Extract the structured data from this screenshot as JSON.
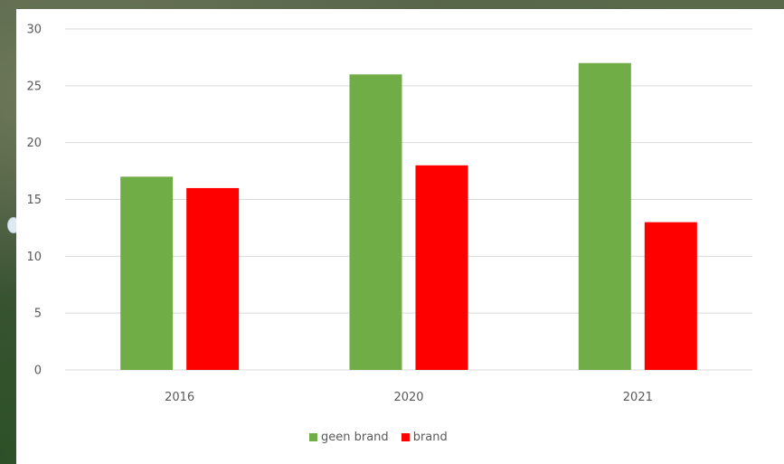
{
  "chart_data": {
    "type": "bar",
    "categories": [
      "2016",
      "2020",
      "2021"
    ],
    "series": [
      {
        "name": "geen brand",
        "color": "#70ad47",
        "values": [
          17,
          26,
          27
        ]
      },
      {
        "name": "brand",
        "color": "#ff0000",
        "values": [
          16,
          18,
          13
        ]
      }
    ],
    "ylim": [
      0,
      30
    ],
    "yticks": [
      "0",
      "5",
      "10",
      "15",
      "20",
      "25",
      "30"
    ],
    "grid": true,
    "legend_position": "bottom"
  }
}
